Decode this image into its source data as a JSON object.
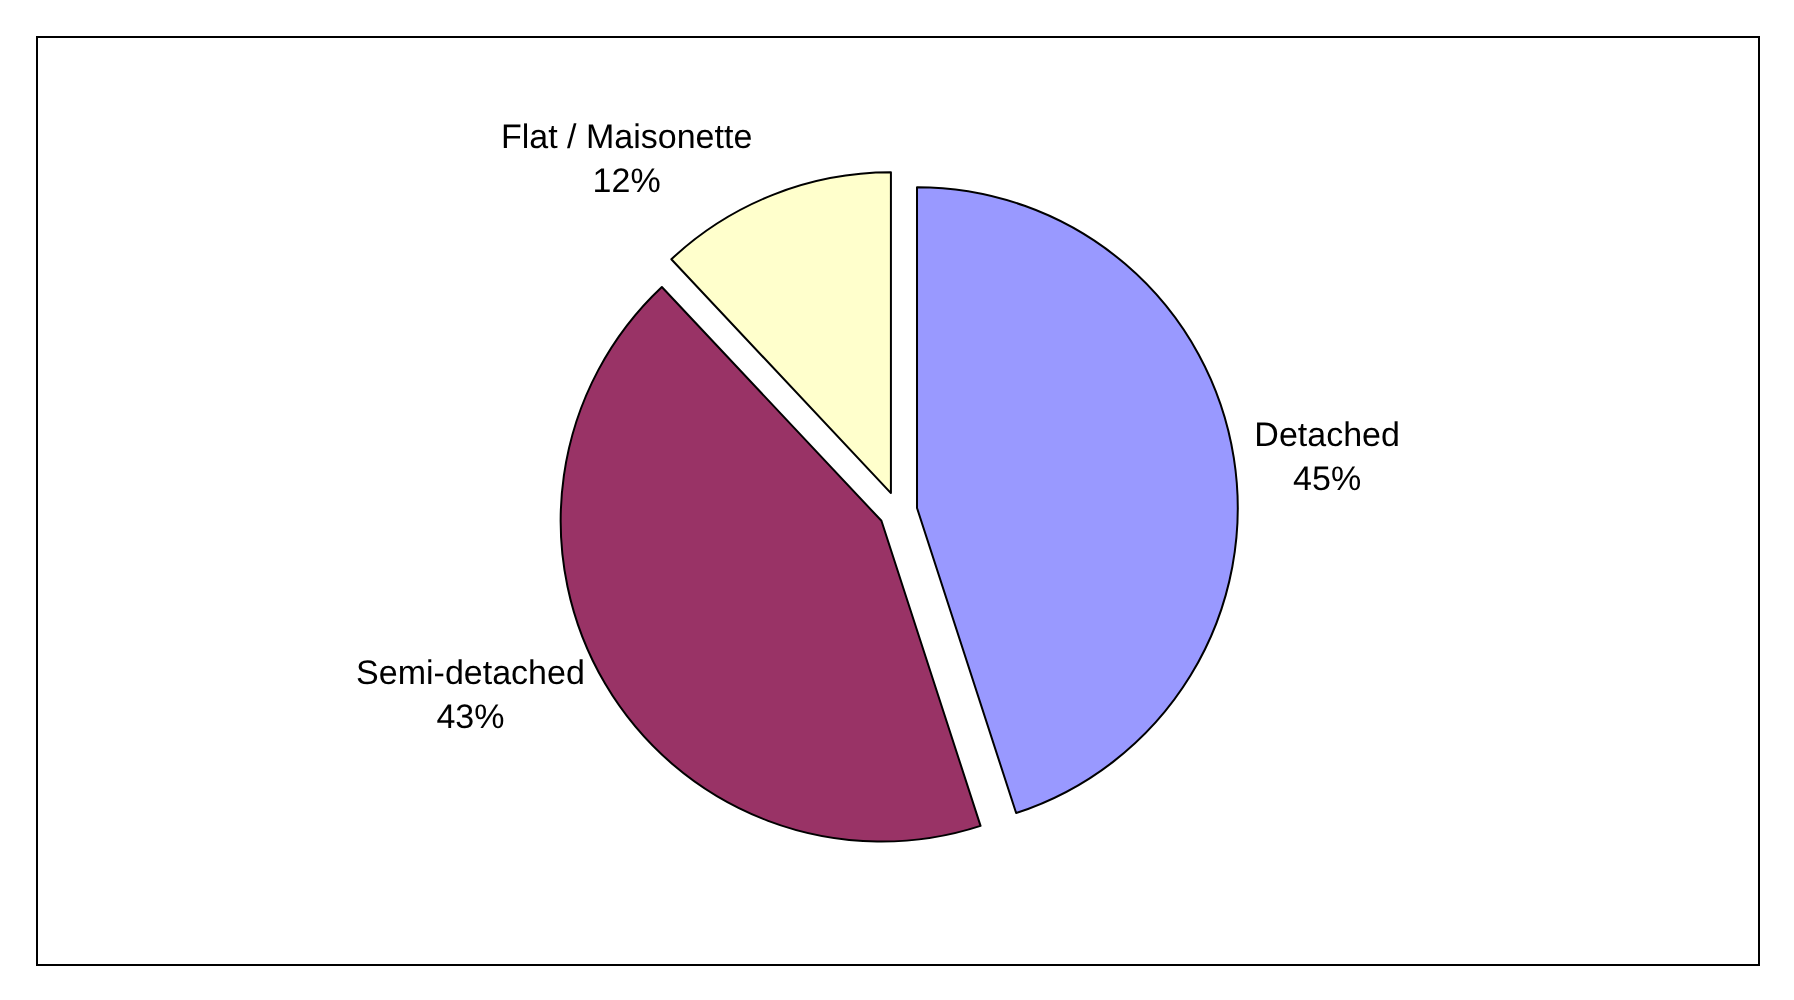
{
  "chart_data": {
    "type": "pie",
    "categories": [
      "Detached",
      "Semi-detached",
      "Flat / Maisonette"
    ],
    "values": [
      45,
      43,
      12
    ],
    "colors": [
      "#9999ff",
      "#993366",
      "#ffffcc"
    ],
    "value_labels": [
      "45%",
      "43%",
      "12%"
    ],
    "legend": false
  }
}
